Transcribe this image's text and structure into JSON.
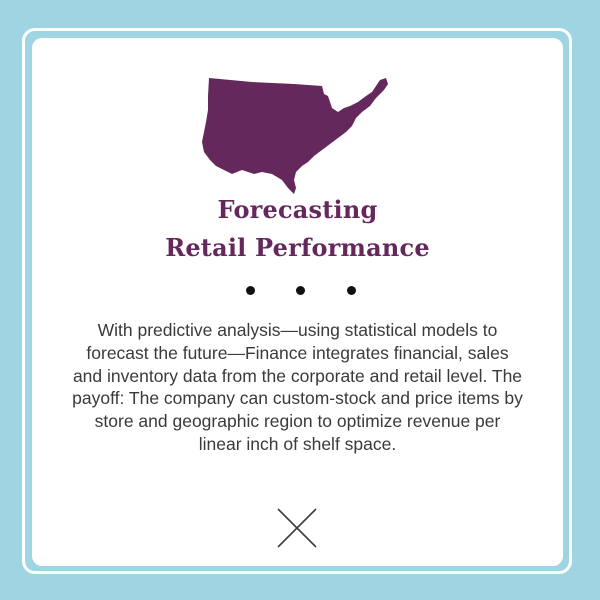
{
  "card": {
    "map_icon": "us-map-icon",
    "title_line1": "Forecasting",
    "title_line2": "Retail Performance",
    "divider_icon": "three-dots-divider",
    "body": "With predictive analysis—using statistical models to forecast the future—Finance integrates financial, sales and inventory data from the corporate and retail level. The payoff: The company can custom-stock and price items by store and geographic region to optimize revenue per linear inch of shelf space.",
    "close_icon": "close-icon"
  },
  "colors": {
    "background": "#9fd5e3",
    "card": "#ffffff",
    "accent": "#65285c",
    "text": "#3a3a3a"
  }
}
